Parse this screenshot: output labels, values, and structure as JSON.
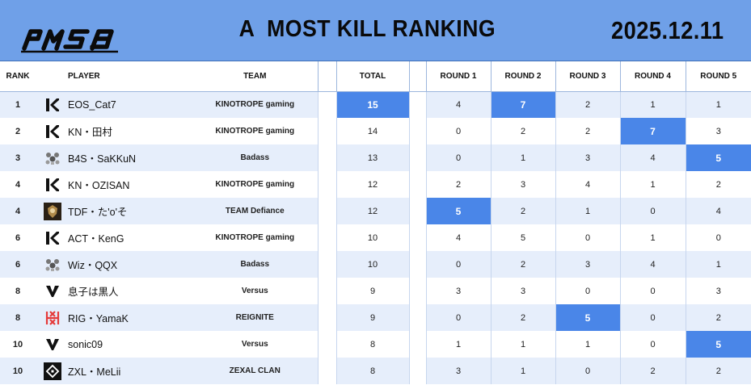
{
  "header": {
    "logo_text": "PMSB",
    "title": "A  MOST KILL RANKING",
    "date": "2025.12.11",
    "colors": {
      "header_bg": "#6fa0e8",
      "highlight": "#4a86e8",
      "row_alt": "#e6eefb"
    }
  },
  "columns": {
    "rank": "RANK",
    "player": "PLAYER",
    "team": "TEAM",
    "total": "TOTAL",
    "rounds": [
      "ROUND 1",
      "ROUND 2",
      "ROUND 3",
      "ROUND 4",
      "ROUND 5"
    ]
  },
  "rows": [
    {
      "rank": "1",
      "logo": "kinotrope-icon",
      "player": "EOS_Cat7",
      "team": "KINOTROPE gaming",
      "total": "15",
      "rounds": [
        "4",
        "7",
        "2",
        "1",
        "1"
      ],
      "highlight_total": true,
      "highlight_rounds": [
        2
      ]
    },
    {
      "rank": "2",
      "logo": "kinotrope-icon",
      "player": "KN・田村",
      "team": "KINOTROPE gaming",
      "total": "14",
      "rounds": [
        "0",
        "2",
        "2",
        "7",
        "3"
      ],
      "highlight_total": false,
      "highlight_rounds": [
        4
      ]
    },
    {
      "rank": "3",
      "logo": "badass-icon",
      "player": "B4S・SaKKuN",
      "team": "Badass",
      "total": "13",
      "rounds": [
        "0",
        "1",
        "3",
        "4",
        "5"
      ],
      "highlight_total": false,
      "highlight_rounds": [
        5
      ]
    },
    {
      "rank": "4",
      "logo": "kinotrope-icon",
      "player": "KN・OZISAN",
      "team": "KINOTROPE gaming",
      "total": "12",
      "rounds": [
        "2",
        "3",
        "4",
        "1",
        "2"
      ],
      "highlight_total": false,
      "highlight_rounds": []
    },
    {
      "rank": "4",
      "logo": "defiance-icon",
      "player": "TDF・た'o'そ",
      "team": "TEAM Defiance",
      "total": "12",
      "rounds": [
        "5",
        "2",
        "1",
        "0",
        "4"
      ],
      "highlight_total": false,
      "highlight_rounds": [
        1
      ]
    },
    {
      "rank": "6",
      "logo": "kinotrope-icon",
      "player": "ACT・KenG",
      "team": "KINOTROPE gaming",
      "total": "10",
      "rounds": [
        "4",
        "5",
        "0",
        "1",
        "0"
      ],
      "highlight_total": false,
      "highlight_rounds": []
    },
    {
      "rank": "6",
      "logo": "badass-icon",
      "player": "Wiz・QQX",
      "team": "Badass",
      "total": "10",
      "rounds": [
        "0",
        "2",
        "3",
        "4",
        "1"
      ],
      "highlight_total": false,
      "highlight_rounds": []
    },
    {
      "rank": "8",
      "logo": "versus-icon",
      "player": "息子は黒人",
      "team": "Versus",
      "total": "9",
      "rounds": [
        "3",
        "3",
        "0",
        "0",
        "3"
      ],
      "highlight_total": false,
      "highlight_rounds": []
    },
    {
      "rank": "8",
      "logo": "reignite-icon",
      "player": "RIG・YamaK",
      "team": "REIGNITE",
      "total": "9",
      "rounds": [
        "0",
        "2",
        "5",
        "0",
        "2"
      ],
      "highlight_total": false,
      "highlight_rounds": [
        3
      ]
    },
    {
      "rank": "10",
      "logo": "versus-icon",
      "player": "sonic09",
      "team": "Versus",
      "total": "8",
      "rounds": [
        "1",
        "1",
        "1",
        "0",
        "5"
      ],
      "highlight_total": false,
      "highlight_rounds": [
        5
      ]
    },
    {
      "rank": "10",
      "logo": "zexal-icon",
      "player": "ZXL・MeLii",
      "team": "ZEXAL CLAN",
      "total": "8",
      "rounds": [
        "3",
        "1",
        "0",
        "2",
        "2"
      ],
      "highlight_total": false,
      "highlight_rounds": []
    }
  ]
}
